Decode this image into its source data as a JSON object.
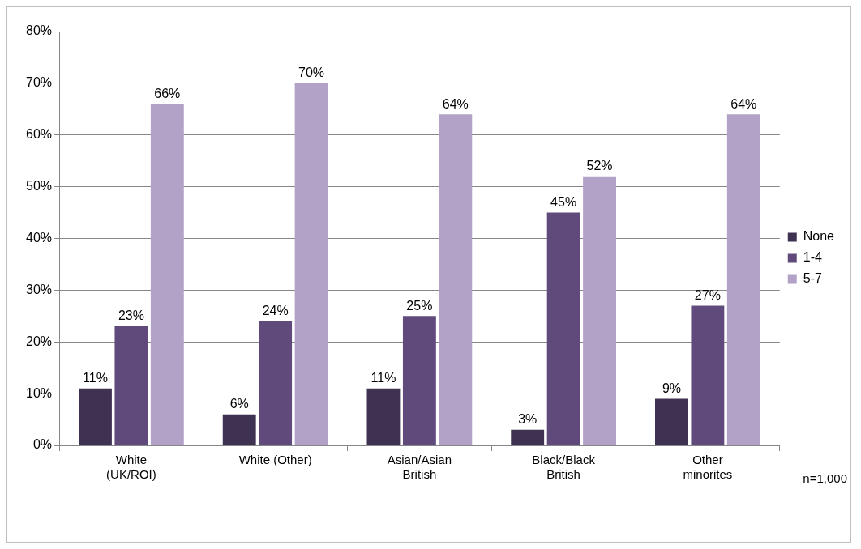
{
  "chart_data": {
    "type": "bar",
    "categories": [
      "White (UK/ROI)",
      "White (Other)",
      "Asian/Asian British",
      "Black/Black British",
      "Other minorites"
    ],
    "series": [
      {
        "name": "None",
        "color": "#3f3151",
        "values": [
          11,
          6,
          11,
          3,
          9
        ],
        "value_labels": [
          "11%",
          "6%",
          "11%",
          "3%",
          "9%"
        ]
      },
      {
        "name": "1-4",
        "color": "#604a7b",
        "values": [
          23,
          24,
          25,
          45,
          27
        ],
        "value_labels": [
          "23%",
          "24%",
          "25%",
          "45%",
          "27%"
        ]
      },
      {
        "name": "5-7",
        "color": "#b3a2c7",
        "values": [
          66,
          70,
          64,
          52,
          64
        ],
        "value_labels": [
          "66%",
          "70%",
          "64%",
          "52%",
          "64%"
        ]
      }
    ],
    "ylim": [
      0,
      80
    ],
    "yticks": [
      {
        "value": 0,
        "label": "0%"
      },
      {
        "value": 10,
        "label": "10%"
      },
      {
        "value": 20,
        "label": "20%"
      },
      {
        "value": 30,
        "label": "30%"
      },
      {
        "value": 40,
        "label": "40%"
      },
      {
        "value": 50,
        "label": "50%"
      },
      {
        "value": 60,
        "label": "60%"
      },
      {
        "value": 70,
        "label": "70%"
      },
      {
        "value": 80,
        "label": "80%"
      }
    ],
    "grid": "y",
    "legend": "right",
    "annotations": [
      "n=1,000"
    ]
  }
}
